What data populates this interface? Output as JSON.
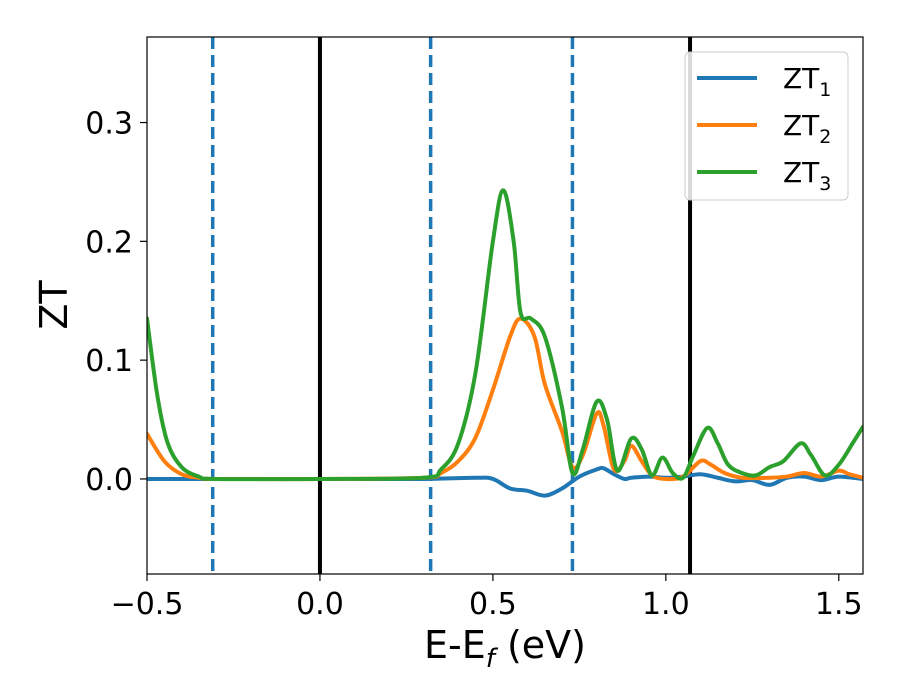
{
  "chart_data": {
    "type": "line",
    "xlabel": "E-E_f (eV)",
    "ylabel": "ZT",
    "xlim": [
      -0.5,
      1.57
    ],
    "ylim": [
      -0.08,
      0.372
    ],
    "xticks": [
      -0.5,
      0.0,
      0.5,
      1.0,
      1.5
    ],
    "xtick_labels": [
      "−0.5",
      "0.0",
      "0.5",
      "1.0",
      "1.5"
    ],
    "yticks": [
      0.0,
      0.1,
      0.2,
      0.3
    ],
    "ytick_labels": [
      "0.0",
      "0.1",
      "0.2",
      "0.3"
    ],
    "grid": false,
    "legend_position": "top-right",
    "vlines": [
      {
        "x": -0.31,
        "style": "dashed",
        "color": "#1f77b4"
      },
      {
        "x": 0.0,
        "style": "solid",
        "color": "#000000"
      },
      {
        "x": 0.32,
        "style": "dashed",
        "color": "#1f77b4"
      },
      {
        "x": 0.73,
        "style": "dashed",
        "color": "#1f77b4"
      },
      {
        "x": 1.07,
        "style": "solid",
        "color": "#000000"
      }
    ],
    "series": [
      {
        "name": "ZT",
        "subscript": "1",
        "color": "#1f77b4",
        "points": [
          [
            -0.5,
            0.0
          ],
          [
            -0.3,
            0.0
          ],
          [
            0.0,
            0.0
          ],
          [
            0.3,
            0.0
          ],
          [
            0.45,
            0.001
          ],
          [
            0.5,
            0.0
          ],
          [
            0.55,
            -0.008
          ],
          [
            0.6,
            -0.01
          ],
          [
            0.65,
            -0.014
          ],
          [
            0.7,
            -0.008
          ],
          [
            0.75,
            0.002
          ],
          [
            0.8,
            0.008
          ],
          [
            0.82,
            0.009
          ],
          [
            0.85,
            0.004
          ],
          [
            0.88,
            0.0
          ],
          [
            0.9,
            0.001
          ],
          [
            0.95,
            0.002
          ],
          [
            1.0,
            0.001
          ],
          [
            1.05,
            0.002
          ],
          [
            1.1,
            0.004
          ],
          [
            1.15,
            0.001
          ],
          [
            1.2,
            -0.002
          ],
          [
            1.25,
            -0.001
          ],
          [
            1.3,
            -0.005
          ],
          [
            1.35,
            0.001
          ],
          [
            1.4,
            0.002
          ],
          [
            1.45,
            -0.001
          ],
          [
            1.5,
            0.002
          ],
          [
            1.57,
            0.0
          ]
        ]
      },
      {
        "name": "ZT",
        "subscript": "2",
        "color": "#ff7f0e",
        "points": [
          [
            -0.5,
            0.038
          ],
          [
            -0.45,
            0.015
          ],
          [
            -0.4,
            0.004
          ],
          [
            -0.35,
            0.001
          ],
          [
            -0.3,
            0.0
          ],
          [
            0.0,
            0.0
          ],
          [
            0.3,
            0.001
          ],
          [
            0.35,
            0.005
          ],
          [
            0.4,
            0.015
          ],
          [
            0.45,
            0.035
          ],
          [
            0.5,
            0.075
          ],
          [
            0.55,
            0.12
          ],
          [
            0.58,
            0.135
          ],
          [
            0.62,
            0.12
          ],
          [
            0.65,
            0.08
          ],
          [
            0.7,
            0.04
          ],
          [
            0.73,
            0.01
          ],
          [
            0.76,
            0.02
          ],
          [
            0.8,
            0.055
          ],
          [
            0.82,
            0.045
          ],
          [
            0.85,
            0.008
          ],
          [
            0.88,
            0.015
          ],
          [
            0.9,
            0.028
          ],
          [
            0.93,
            0.015
          ],
          [
            0.96,
            0.003
          ],
          [
            1.0,
            0.0
          ],
          [
            1.05,
            0.002
          ],
          [
            1.1,
            0.015
          ],
          [
            1.13,
            0.012
          ],
          [
            1.17,
            0.005
          ],
          [
            1.22,
            0.001
          ],
          [
            1.3,
            0.001
          ],
          [
            1.35,
            0.002
          ],
          [
            1.4,
            0.005
          ],
          [
            1.45,
            0.002
          ],
          [
            1.5,
            0.007
          ],
          [
            1.53,
            0.004
          ],
          [
            1.57,
            0.001
          ]
        ]
      },
      {
        "name": "ZT",
        "subscript": "3",
        "color": "#2ca02c",
        "points": [
          [
            -0.5,
            0.135
          ],
          [
            -0.47,
            0.07
          ],
          [
            -0.44,
            0.03
          ],
          [
            -0.4,
            0.01
          ],
          [
            -0.35,
            0.002
          ],
          [
            -0.3,
            0.0
          ],
          [
            0.0,
            0.0
          ],
          [
            0.3,
            0.001
          ],
          [
            0.35,
            0.008
          ],
          [
            0.4,
            0.03
          ],
          [
            0.45,
            0.09
          ],
          [
            0.5,
            0.2
          ],
          [
            0.53,
            0.243
          ],
          [
            0.56,
            0.2
          ],
          [
            0.58,
            0.14
          ],
          [
            0.61,
            0.135
          ],
          [
            0.65,
            0.12
          ],
          [
            0.7,
            0.06
          ],
          [
            0.73,
            0.005
          ],
          [
            0.76,
            0.025
          ],
          [
            0.8,
            0.065
          ],
          [
            0.83,
            0.05
          ],
          [
            0.86,
            0.007
          ],
          [
            0.9,
            0.034
          ],
          [
            0.93,
            0.025
          ],
          [
            0.96,
            0.003
          ],
          [
            0.99,
            0.018
          ],
          [
            1.02,
            0.005
          ],
          [
            1.05,
            0.001
          ],
          [
            1.08,
            0.02
          ],
          [
            1.12,
            0.043
          ],
          [
            1.15,
            0.03
          ],
          [
            1.18,
            0.012
          ],
          [
            1.22,
            0.005
          ],
          [
            1.26,
            0.003
          ],
          [
            1.3,
            0.01
          ],
          [
            1.34,
            0.015
          ],
          [
            1.39,
            0.03
          ],
          [
            1.42,
            0.02
          ],
          [
            1.46,
            0.003
          ],
          [
            1.5,
            0.012
          ],
          [
            1.54,
            0.03
          ],
          [
            1.57,
            0.044
          ]
        ]
      }
    ]
  }
}
